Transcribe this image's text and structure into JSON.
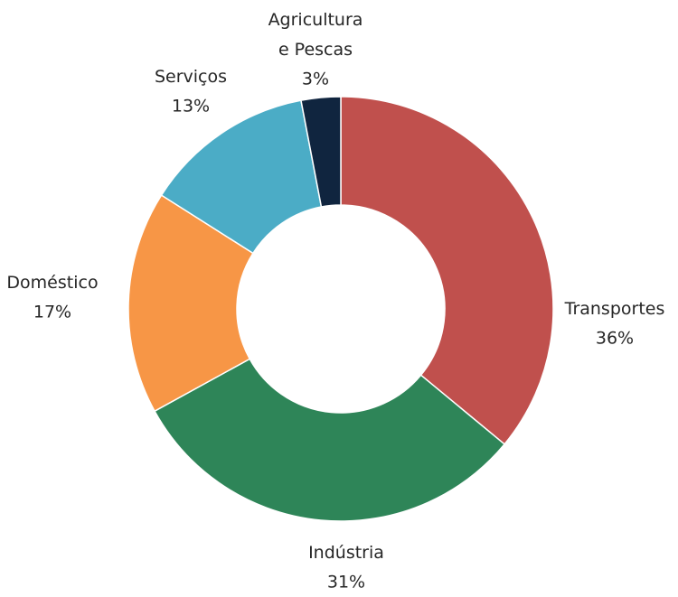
{
  "chart_data": {
    "type": "donut",
    "categories": [
      "Transportes",
      "Indústria",
      "Doméstico",
      "Serviços",
      "Agricultura e Pescas"
    ],
    "values": [
      36,
      31,
      17,
      13,
      3
    ],
    "value_labels": [
      "36%",
      "31%",
      "17%",
      "13%",
      "3%"
    ],
    "colors": [
      "#c0504d",
      "#2e8558",
      "#f79646",
      "#4bacc6",
      "#10253f"
    ]
  }
}
